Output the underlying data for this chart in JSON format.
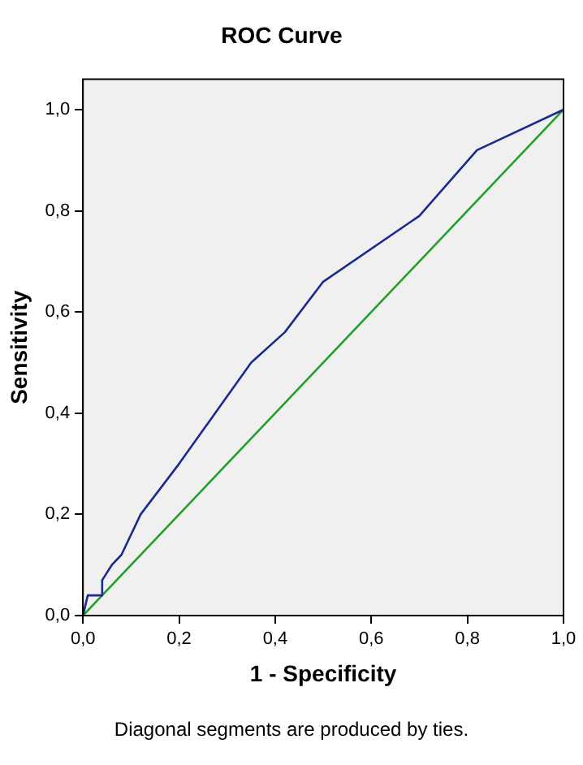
{
  "chart_data": {
    "type": "line",
    "title": "ROC Curve",
    "xlabel": "1 - Specificity",
    "ylabel": "Sensitivity",
    "series": [
      {
        "color": "#1c2a8c",
        "x": [
          0,
          0.01,
          0.04,
          0.04,
          0.06,
          0.08,
          0.12,
          0.2,
          0.35,
          0.42,
          0.5,
          0.7,
          0.82,
          1
        ],
        "values": [
          0,
          0.04,
          0.04,
          0.07,
          0.1,
          0.12,
          0.2,
          0.3,
          0.5,
          0.56,
          0.66,
          0.79,
          0.92,
          1
        ]
      },
      {
        "color": "#22a02a",
        "x": [
          0,
          1
        ],
        "values": [
          0,
          1
        ]
      }
    ],
    "xlim": [
      0,
      1
    ],
    "ylim": [
      0,
      1.06
    ],
    "xticks": [
      {
        "value": 0,
        "label": "0,0"
      },
      {
        "value": 0.2,
        "label": "0,2"
      },
      {
        "value": 0.4,
        "label": "0,4"
      },
      {
        "value": 0.6,
        "label": "0,6"
      },
      {
        "value": 0.8,
        "label": "0,8"
      },
      {
        "value": 1,
        "label": "1,0"
      }
    ],
    "yticks": [
      {
        "value": 0,
        "label": "0,0"
      },
      {
        "value": 0.2,
        "label": "0,2"
      },
      {
        "value": 0.4,
        "label": "0,4"
      },
      {
        "value": 0.6,
        "label": "0,6"
      },
      {
        "value": 0.8,
        "label": "0,8"
      },
      {
        "value": 1,
        "label": "1,0"
      }
    ],
    "grid": false,
    "legend": false,
    "marker": "none",
    "line_style": "solid",
    "annotations": [
      "Diagonal segments are produced by ties."
    ]
  }
}
